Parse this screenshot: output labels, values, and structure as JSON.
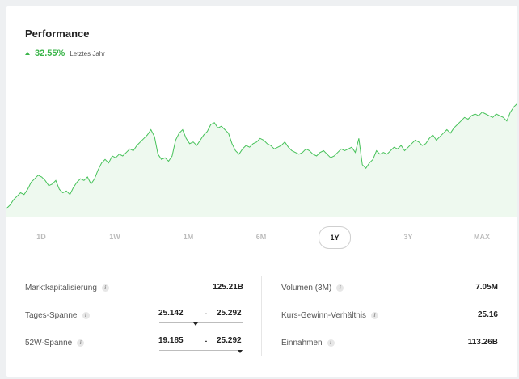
{
  "card": {
    "title": "Performance",
    "change": "32.55%",
    "period_label": "Letztes Jahr"
  },
  "colors": {
    "accent": "#3bb54a",
    "line": "#47c25a",
    "fill": "#eef9ef"
  },
  "ranges": [
    {
      "label": "1D",
      "active": false
    },
    {
      "label": "1W",
      "active": false
    },
    {
      "label": "1M",
      "active": false
    },
    {
      "label": "6M",
      "active": false
    },
    {
      "label": "1Y",
      "active": true
    },
    {
      "label": "3Y",
      "active": false
    },
    {
      "label": "MAX",
      "active": false
    }
  ],
  "stats": {
    "market_cap": {
      "label": "Marktkapitalisierung",
      "value": "125.21B"
    },
    "day_range": {
      "label": "Tages-Spanne",
      "low": "25.142",
      "high": "25.292",
      "separator": "-"
    },
    "week52_range": {
      "label": "52W-Spanne",
      "low": "19.185",
      "high": "25.292",
      "separator": "-"
    },
    "volume": {
      "label": "Volumen (3M)",
      "value": "7.05M"
    },
    "pe_ratio": {
      "label": "Kurs-Gewinn-Verhältnis",
      "value": "25.16"
    },
    "revenue": {
      "label": "Einnahmen",
      "value": "113.26B"
    }
  },
  "chart_data": {
    "type": "area",
    "series": [
      {
        "values": [
          19.3,
          19.5,
          19.8,
          20.0,
          20.2,
          20.1,
          20.4,
          20.8,
          21.0,
          21.2,
          21.1,
          20.9,
          20.6,
          20.7,
          20.9,
          20.4,
          20.2,
          20.3,
          20.1,
          20.5,
          20.8,
          21.0,
          20.9,
          21.1,
          20.7,
          21.0,
          21.5,
          21.9,
          22.1,
          21.9,
          22.3,
          22.2,
          22.4,
          22.3,
          22.5,
          22.7,
          22.6,
          22.9,
          23.1,
          23.3,
          23.5,
          23.8,
          23.4,
          22.4,
          22.1,
          22.2,
          22.0,
          22.3,
          23.2,
          23.6,
          23.8,
          23.3,
          23.0,
          23.1,
          22.9,
          23.2,
          23.5,
          23.7,
          24.1,
          24.2,
          23.9,
          24.0,
          23.8,
          23.6,
          23.0,
          22.6,
          22.4,
          22.7,
          22.9,
          22.8,
          23.0,
          23.1,
          23.3,
          23.2,
          23.0,
          22.9,
          22.7,
          22.8,
          22.9,
          23.1,
          22.8,
          22.6,
          22.5,
          22.4,
          22.5,
          22.7,
          22.6,
          22.4,
          22.3,
          22.5,
          22.6,
          22.4,
          22.2,
          22.3,
          22.5,
          22.7,
          22.6,
          22.7,
          22.8,
          22.5,
          23.3,
          21.8,
          21.6,
          21.9,
          22.1,
          22.6,
          22.4,
          22.5,
          22.4,
          22.6,
          22.8,
          22.7,
          22.9,
          22.6,
          22.8,
          23.0,
          23.2,
          23.1,
          22.9,
          23.0,
          23.3,
          23.5,
          23.2,
          23.4,
          23.6,
          23.8,
          23.6,
          23.9,
          24.1,
          24.3,
          24.5,
          24.4,
          24.6,
          24.7,
          24.6,
          24.8,
          24.7,
          24.6,
          24.5,
          24.7,
          24.6,
          24.5,
          24.3,
          24.8,
          25.1,
          25.3
        ]
      }
    ]
  }
}
